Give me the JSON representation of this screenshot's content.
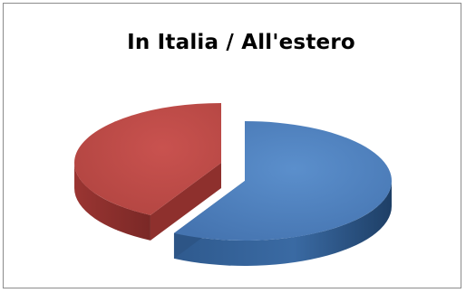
{
  "chart_data": {
    "type": "pie",
    "title": "In Italia / All'estero",
    "style": "3d-exploded",
    "legend": "none",
    "slices": [
      {
        "value": 58,
        "color": "#4f81bd"
      },
      {
        "value": 42,
        "color": "#c0504d"
      }
    ]
  }
}
